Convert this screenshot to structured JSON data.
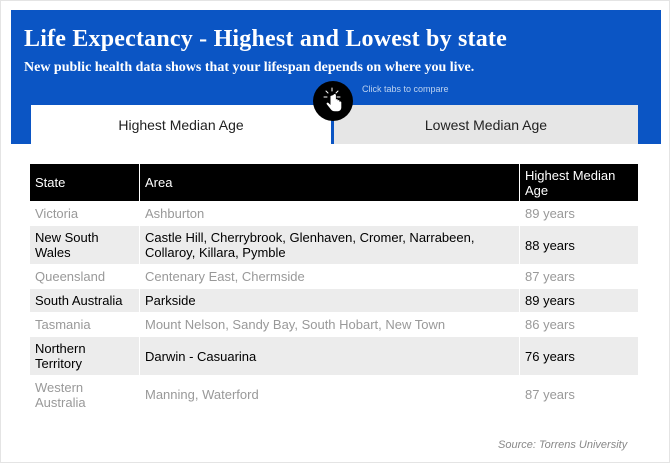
{
  "header": {
    "title": "Life Expectancy - Highest and Lowest by state",
    "subtitle": "New public health data shows that your lifespan depends on where you live.",
    "hint": "Click tabs to compare",
    "touch_icon": "tap-hand-icon",
    "color": "#0b55c4"
  },
  "tabs": [
    {
      "label": "Highest Median Age",
      "active": true
    },
    {
      "label": "Lowest Median Age",
      "active": false
    }
  ],
  "table": {
    "columns": [
      "State",
      "Area",
      "Highest Median Age"
    ],
    "rows": [
      {
        "state": "Victoria",
        "area": "Ashburton",
        "age": "89 years"
      },
      {
        "state": "New South Wales",
        "area": "Castle Hill, Cherrybrook, Glenhaven, Cromer, Narrabeen, Collaroy, Killara, Pymble",
        "age": "88 years"
      },
      {
        "state": "Queensland",
        "area": "Centenary East, Chermside",
        "age": "87 years"
      },
      {
        "state": "South Australia",
        "area": "Parkside",
        "age": "89 years"
      },
      {
        "state": "Tasmania",
        "area": "Mount Nelson, Sandy Bay, South Hobart, New Town",
        "age": "86 years"
      },
      {
        "state": "Northern Territory",
        "area": "Darwin - Casuarina",
        "age": "76 years"
      },
      {
        "state": "Western Australia",
        "area": "Manning, Waterford",
        "age": "87 years"
      }
    ]
  },
  "source": "Source: Torrens University"
}
